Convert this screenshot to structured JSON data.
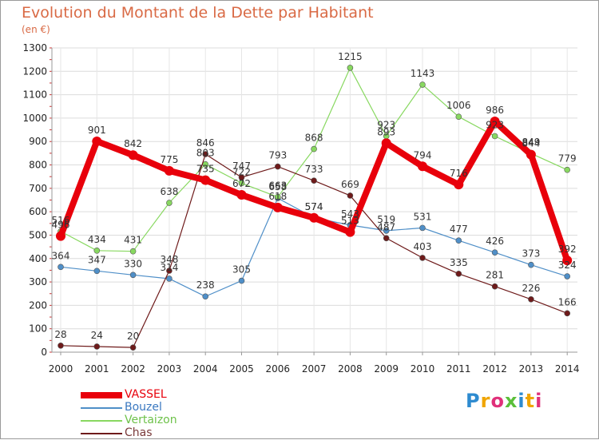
{
  "chart_data": {
    "type": "line",
    "title": "Evolution du Montant de la Dette par Habitant",
    "subtitle": "(en €)",
    "x": [
      "2000",
      "2001",
      "2002",
      "2003",
      "2004",
      "2005",
      "2006",
      "2007",
      "2008",
      "2009",
      "2010",
      "2011",
      "2012",
      "2013",
      "2014"
    ],
    "ylim": [
      0,
      1300
    ],
    "yticks": [
      0,
      100,
      200,
      300,
      400,
      500,
      600,
      700,
      800,
      900,
      1000,
      1100,
      1200,
      1300
    ],
    "grid": true,
    "legend_position": "bottom-left",
    "series": [
      {
        "name": "VASSEL",
        "color": "#e8000b",
        "emphasis": true,
        "values": [
          496,
          901,
          842,
          775,
          735,
          672,
          618,
          574,
          513,
          893,
          794,
          716,
          986,
          844,
          392
        ]
      },
      {
        "name": "Bouzel",
        "color": "#4f8fc8",
        "values": [
          364,
          347,
          330,
          314,
          238,
          305,
          658,
          574,
          543,
          519,
          531,
          477,
          426,
          373,
          324
        ]
      },
      {
        "name": "Vertaizon",
        "color": "#88d860",
        "values": [
          516,
          434,
          431,
          638,
          803,
          722,
          663,
          868,
          1215,
          923,
          1143,
          1006,
          923,
          849,
          779
        ]
      },
      {
        "name": "Chas",
        "color": "#6e1a1a",
        "values": [
          28,
          24,
          20,
          348,
          846,
          747,
          793,
          733,
          669,
          487,
          403,
          335,
          281,
          226,
          166
        ]
      }
    ]
  },
  "branding": {
    "letters": [
      "P",
      "r",
      "o",
      "x",
      "i",
      "t",
      "i"
    ],
    "colors": [
      "#2e8bd0",
      "#f0a500",
      "#e0307a",
      "#5bbf3a",
      "#2e8bd0",
      "#f0a500",
      "#e0307a"
    ]
  }
}
